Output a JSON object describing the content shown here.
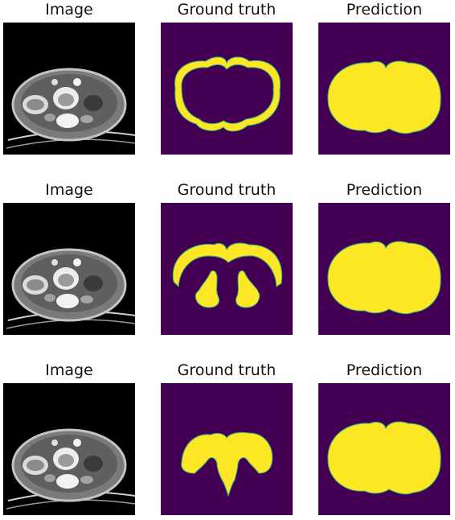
{
  "rows": [
    {
      "titles": [
        "Image",
        "Ground truth",
        "Prediction"
      ]
    },
    {
      "titles": [
        "Image",
        "Ground truth",
        "Prediction"
      ]
    },
    {
      "titles": [
        "Image",
        "Ground truth",
        "Prediction"
      ]
    }
  ],
  "colors": {
    "background": "#440154",
    "mask": "#fde725",
    "edge": "#2fb47c",
    "ct_background": "#000000"
  }
}
